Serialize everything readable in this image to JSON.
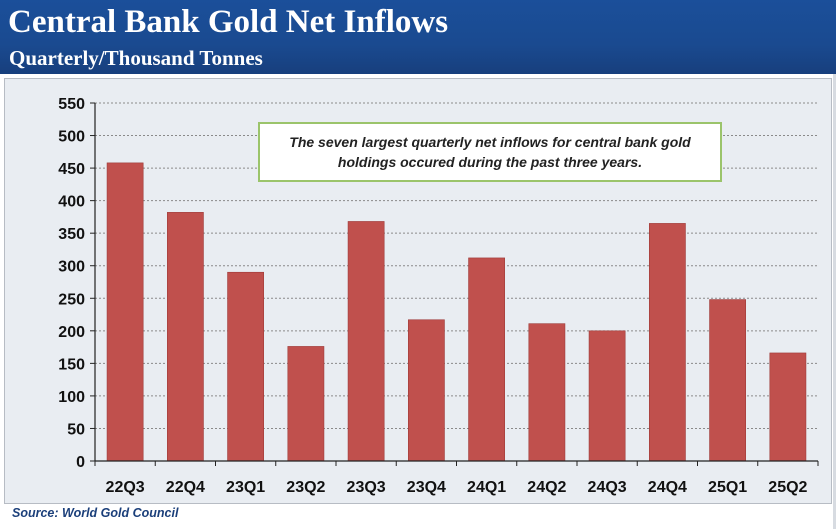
{
  "header": {
    "title": "Central Bank Gold Net Inflows",
    "subtitle": "Quarterly/Thousand Tonnes"
  },
  "note": {
    "line1": "The seven largest quarterly net inflows for central bank gold",
    "line2": "holdings occured during the past three years."
  },
  "source": "Source: World Gold Council",
  "colors": {
    "bar": "#c0504d",
    "header": "#1b4f9a",
    "plot_bg": "#e9edf2",
    "grid": "#8a8a8a",
    "note_border": "#9bc46b"
  },
  "chart_data": {
    "type": "bar",
    "title": "Central Bank Gold Net Inflows",
    "subtitle": "Quarterly/Thousand Tonnes",
    "categories": [
      "22Q3",
      "22Q4",
      "23Q1",
      "23Q2",
      "23Q3",
      "23Q4",
      "24Q1",
      "24Q2",
      "24Q3",
      "24Q4",
      "25Q1",
      "25Q2"
    ],
    "values": [
      458,
      382,
      290,
      176,
      368,
      217,
      312,
      211,
      200,
      365,
      248,
      166
    ],
    "yticks": [
      0,
      50,
      100,
      150,
      200,
      250,
      300,
      350,
      400,
      450,
      500,
      550
    ],
    "ylim": [
      0,
      550
    ],
    "xlabel": "",
    "ylabel": "",
    "grid": true,
    "legend": "none"
  }
}
